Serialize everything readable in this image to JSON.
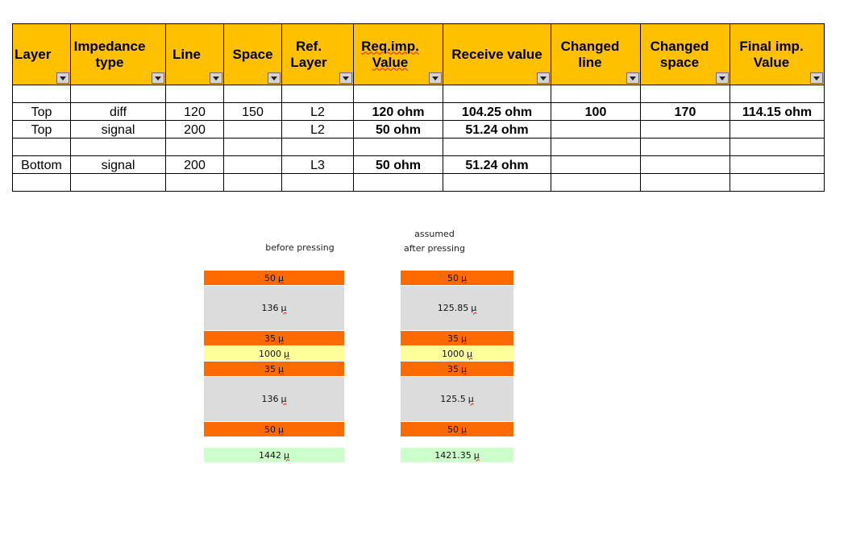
{
  "table": {
    "headers": [
      {
        "text": "Layer",
        "align": "left"
      },
      {
        "text": "Impedance type",
        "align": "left"
      },
      {
        "text": "Line",
        "align": "left"
      },
      {
        "text": "Space",
        "align": "center"
      },
      {
        "text": "Ref. Layer",
        "align": "center"
      },
      {
        "text": "Req.imp. Value",
        "align": "center"
      },
      {
        "text": "Receive value",
        "align": "center"
      },
      {
        "text": "Changed line",
        "align": "left"
      },
      {
        "text": "Changed space",
        "align": "left"
      },
      {
        "text": "Final imp. Value",
        "align": "center"
      }
    ],
    "rows": [
      [
        "",
        "",
        "",
        "",
        "",
        "",
        "",
        "",
        "",
        ""
      ],
      [
        "Top",
        "diff",
        "120",
        "150",
        "L2",
        "120 ohm",
        "104.25 ohm",
        "100",
        "170",
        "114.15 ohm"
      ],
      [
        "Top",
        "signal",
        "200",
        "",
        "L2",
        "50 ohm",
        "51.24 ohm",
        "",
        "",
        ""
      ],
      [
        "",
        "",
        "",
        "",
        "",
        "",
        "",
        "",
        "",
        ""
      ],
      [
        "Bottom",
        "signal",
        "200",
        "",
        "L3",
        "50 ohm",
        "51.24 ohm",
        "",
        "",
        ""
      ],
      [
        "",
        "",
        "",
        "",
        "",
        "",
        "",
        "",
        "",
        ""
      ]
    ]
  },
  "stackups": {
    "before": {
      "label": "before pressing",
      "layers": [
        {
          "value": "50",
          "unit": "µ",
          "kind": "copper"
        },
        {
          "value": "136",
          "unit": "µ",
          "kind": "prepreg"
        },
        {
          "value": "35",
          "unit": "µ",
          "kind": "copper"
        },
        {
          "value": "1000",
          "unit": "µ",
          "kind": "core"
        },
        {
          "value": "35",
          "unit": "µ",
          "kind": "copper"
        },
        {
          "value": "136",
          "unit": "µ",
          "kind": "prepreg"
        },
        {
          "value": "50",
          "unit": "µ",
          "kind": "copper"
        }
      ],
      "total": {
        "value": "1442",
        "unit": "µ"
      }
    },
    "after": {
      "label_line1": "assumed",
      "label_line2": "after pressing",
      "layers": [
        {
          "value": "50",
          "unit": "µ",
          "kind": "copper"
        },
        {
          "value": "125.85",
          "unit": "µ",
          "kind": "prepreg"
        },
        {
          "value": "35",
          "unit": "µ",
          "kind": "copper"
        },
        {
          "value": "1000",
          "unit": "µ",
          "kind": "core"
        },
        {
          "value": "35",
          "unit": "µ",
          "kind": "copper"
        },
        {
          "value": "125.5",
          "unit": "µ",
          "kind": "prepreg"
        },
        {
          "value": "50",
          "unit": "µ",
          "kind": "copper"
        }
      ],
      "total": {
        "value": "1421.35",
        "unit": "µ"
      }
    }
  },
  "colors": {
    "header_bg": "#ffc000",
    "required_value": "#1f7bc0",
    "received_value": "#e8161e",
    "final_value": "#6b5b8a",
    "copper": "#ff6a00",
    "prepreg": "#dcdcdc",
    "core": "#ffff99",
    "total": "#ccffcc"
  }
}
